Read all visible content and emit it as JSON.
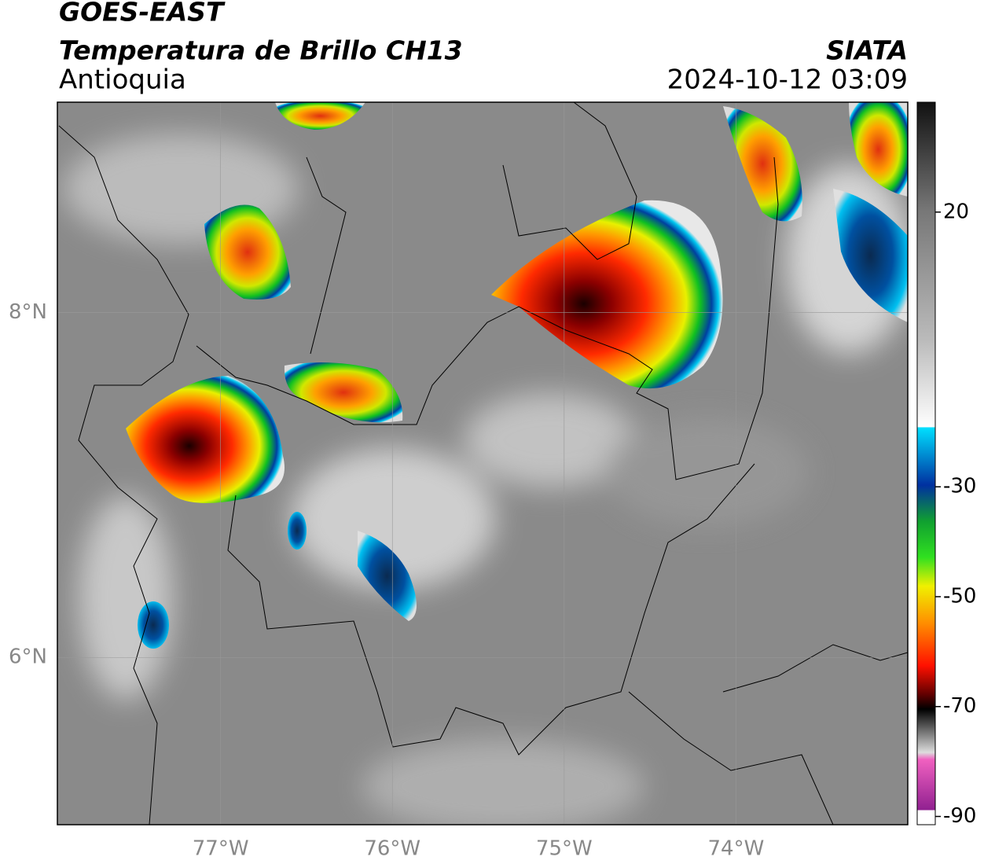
{
  "header": {
    "title": "GOES-EAST",
    "subtitle": "Temperatura de Brillo CH13",
    "region": "Antioquia",
    "source": "SIATA",
    "datetime": "2024-10-12 03:09"
  },
  "map": {
    "xlim": [
      -77.95,
      -73.0
    ],
    "ylim": [
      5.03,
      9.22
    ],
    "xticks": [
      {
        "value": -77,
        "label": "77°W"
      },
      {
        "value": -76,
        "label": "76°W"
      },
      {
        "value": -75,
        "label": "75°W"
      },
      {
        "value": -74,
        "label": "74°W"
      }
    ],
    "yticks": [
      {
        "value": 8,
        "label": "8°N"
      },
      {
        "value": 6,
        "label": "6°N"
      }
    ],
    "grid": true
  },
  "colorbar": {
    "lim": [
      -91.5,
      40
    ],
    "ticks": [
      20,
      -30,
      -50,
      -70,
      -90
    ]
  }
}
